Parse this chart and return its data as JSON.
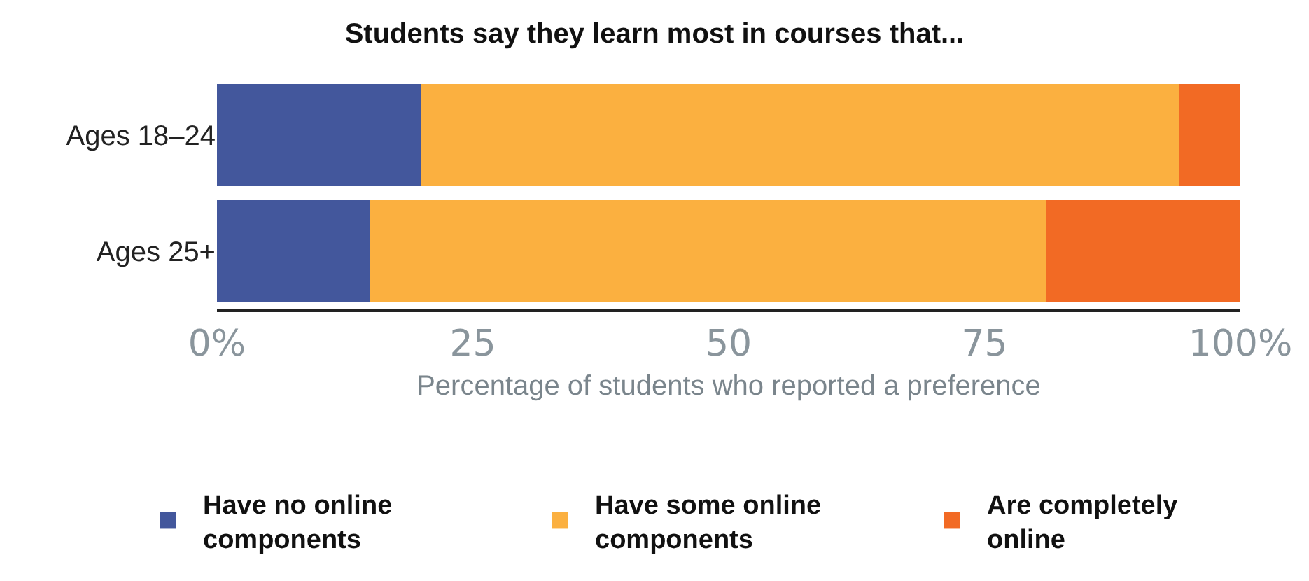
{
  "chart_data": {
    "type": "bar",
    "orientation": "horizontal",
    "stacked": true,
    "title": "Students say they learn most in courses that...",
    "xlabel": "Percentage of students who reported a preference",
    "categories": [
      "Ages 18–24",
      "Ages 25+"
    ],
    "series": [
      {
        "name": "Have no online components",
        "color": "#43579c",
        "values": [
          20,
          15
        ]
      },
      {
        "name": "Have some online components",
        "color": "#fbb040",
        "values": [
          74,
          66
        ]
      },
      {
        "name": "Are completely online",
        "color": "#f26a24",
        "values": [
          6,
          19
        ]
      }
    ],
    "xlim": [
      0,
      100
    ],
    "xticks": [
      {
        "value": 0,
        "label": "0%"
      },
      25,
      50,
      75,
      {
        "value": 100,
        "label": "100%"
      }
    ],
    "grid": false,
    "legend": "bottom"
  }
}
